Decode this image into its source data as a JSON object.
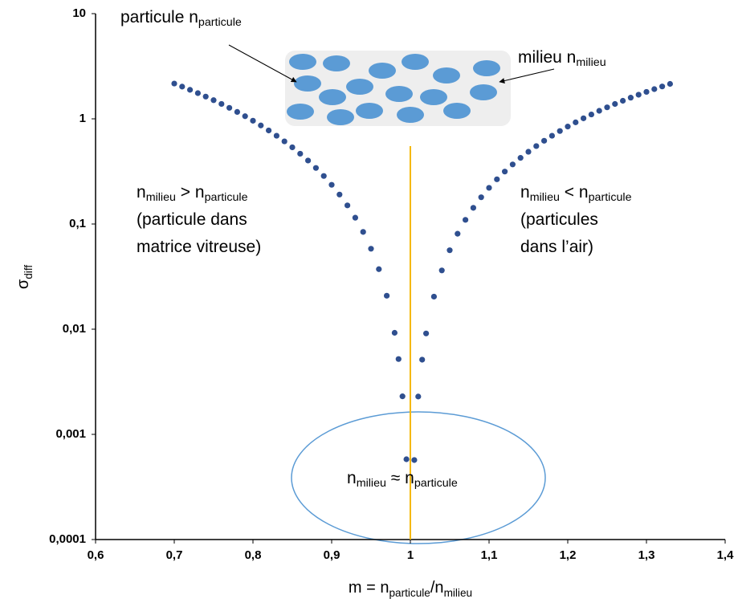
{
  "chart_data": {
    "type": "scatter",
    "x_label": [
      "m = n",
      "particule",
      "/n",
      "milieu"
    ],
    "y_label": [
      "σ",
      "diff"
    ],
    "xlim": [
      0.6,
      1.4
    ],
    "ylim": [
      0.0001,
      10
    ],
    "log_y": true,
    "xticks": [
      {
        "value": 0.6,
        "label": "0,6"
      },
      {
        "value": 0.7,
        "label": "0,7"
      },
      {
        "value": 0.8,
        "label": "0,8"
      },
      {
        "value": 0.9,
        "label": "0,9"
      },
      1,
      {
        "value": 1.1,
        "label": "1,1"
      },
      {
        "value": 1.2,
        "label": "1,2"
      },
      {
        "value": 1.3,
        "label": "1,3"
      },
      {
        "value": 1.4,
        "label": "1,4"
      }
    ],
    "yticks": [
      {
        "value": 0.0001,
        "label": "0,0001"
      },
      {
        "value": 0.001,
        "label": "0,001"
      },
      {
        "value": 0.01,
        "label": "0,01"
      },
      {
        "value": 0.1,
        "label": "0,1"
      },
      1,
      10
    ],
    "series": [
      {
        "color": "#2f4f8f",
        "x": [
          0.7,
          0.71,
          0.72,
          0.73,
          0.74,
          0.75,
          0.76,
          0.77,
          0.78,
          0.79,
          0.8,
          0.81,
          0.82,
          0.83,
          0.84,
          0.85,
          0.86,
          0.87,
          0.88,
          0.89,
          0.9,
          0.91,
          0.92,
          0.93,
          0.94,
          0.95,
          0.96,
          0.97,
          0.98,
          0.985,
          0.99,
          0.995
        ],
        "values": [
          2.165,
          2.024,
          1.887,
          1.755,
          1.627,
          1.504,
          1.386,
          1.272,
          1.163,
          1.059,
          0.9595,
          0.8651,
          0.7754,
          0.6907,
          0.6109,
          0.5361,
          0.4662,
          0.4012,
          0.3412,
          0.2861,
          0.2359,
          0.1906,
          0.1503,
          0.1148,
          0.0841,
          0.0582,
          0.0372,
          0.0208,
          0.00924,
          0.0052,
          0.0023,
          0.00058
        ]
      },
      {
        "color": "#2f4f8f",
        "x": [
          1.005,
          1.01,
          1.015,
          1.02,
          1.03,
          1.04,
          1.05,
          1.06,
          1.07,
          1.08,
          1.09,
          1.1,
          1.11,
          1.12,
          1.13,
          1.14,
          1.15,
          1.16,
          1.17,
          1.18,
          1.19,
          1.2,
          1.21,
          1.22,
          1.23,
          1.24,
          1.25,
          1.26,
          1.27,
          1.28,
          1.29,
          1.3,
          1.31,
          1.32,
          1.33
        ],
        "values": [
          0.00057,
          0.00229,
          0.00513,
          0.00911,
          0.0204,
          0.0362,
          0.0563,
          0.0808,
          0.1095,
          0.1425,
          0.1796,
          0.2208,
          0.2661,
          0.3153,
          0.3684,
          0.4254,
          0.4862,
          0.5506,
          0.6187,
          0.6904,
          0.7656,
          0.8442,
          0.9262,
          1.0115,
          1.1,
          1.192,
          1.286,
          1.384,
          1.485,
          1.589,
          1.695,
          1.804,
          1.916,
          2.031,
          2.148
        ]
      }
    ],
    "reference_line": {
      "x": 1,
      "y_top": 0.55,
      "color": "#f5b800"
    },
    "annotations": [
      {
        "lines": [
          [
            "particule n",
            "particule"
          ]
        ]
      },
      {
        "lines": [
          [
            "milieu n",
            "milieu"
          ]
        ]
      },
      {
        "lines": [
          [
            "n",
            "milieu",
            " > n",
            "particule"
          ],
          [
            "(particule dans"
          ],
          [
            "matrice vitreuse)"
          ]
        ]
      },
      {
        "lines": [
          [
            "n",
            "milieu",
            " < n",
            "particule"
          ],
          [
            "(particules"
          ],
          [
            "dans l’air)"
          ]
        ]
      },
      {
        "lines": [
          [
            "n",
            "milieu",
            " ≈ n",
            "particule"
          ]
        ]
      }
    ]
  }
}
